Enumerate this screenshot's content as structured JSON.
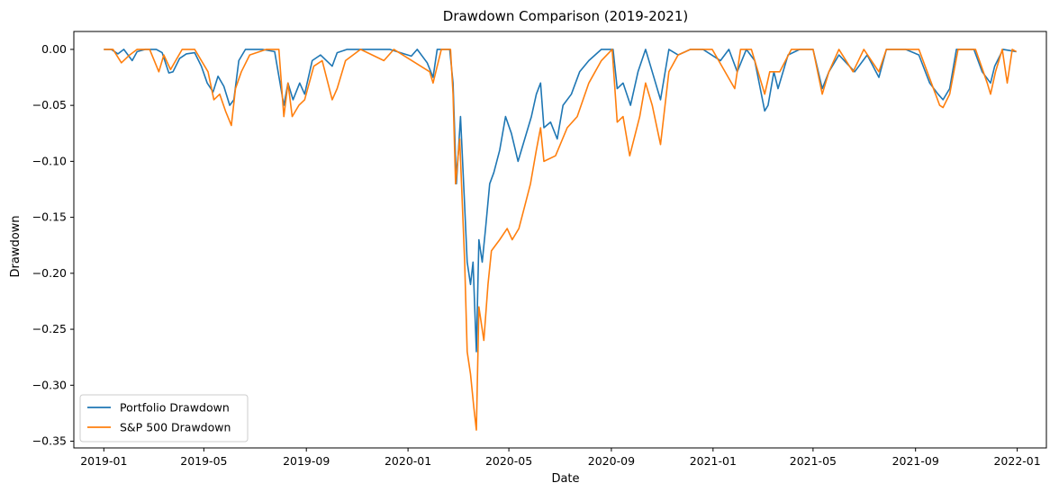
{
  "chart_data": {
    "type": "line",
    "title": "Drawdown Comparison (2019-2021)",
    "xlabel": "Date",
    "ylabel": "Drawdown",
    "xlim": [
      "2018-11-26",
      "2022-02-05"
    ],
    "ylim": [
      -0.356,
      0.016
    ],
    "x_ticks": [
      "2019-01",
      "2019-05",
      "2019-09",
      "2020-01",
      "2020-05",
      "2020-09",
      "2021-01",
      "2021-05",
      "2021-09",
      "2022-01"
    ],
    "y_ticks": [
      0.0,
      -0.05,
      -0.1,
      -0.15,
      -0.2,
      -0.25,
      -0.3,
      -0.35
    ],
    "y_tick_labels": [
      "0.00",
      "−0.05",
      "−0.10",
      "−0.15",
      "−0.20",
      "−0.25",
      "−0.30",
      "−0.35"
    ],
    "grid": false,
    "legend_position": "lower-left",
    "series": [
      {
        "name": "Portfolio Drawdown",
        "color": "#1f77b4",
        "points": [
          [
            "2019-01-01",
            0.0
          ],
          [
            "2019-01-10",
            0.0
          ],
          [
            "2019-01-18",
            -0.004
          ],
          [
            "2019-01-25",
            0.0
          ],
          [
            "2019-02-04",
            -0.01
          ],
          [
            "2019-02-10",
            -0.002
          ],
          [
            "2019-02-20",
            0.0
          ],
          [
            "2019-03-05",
            0.0
          ],
          [
            "2019-03-12",
            -0.003
          ],
          [
            "2019-03-20",
            -0.021
          ],
          [
            "2019-03-25",
            -0.02
          ],
          [
            "2019-04-02",
            -0.008
          ],
          [
            "2019-04-10",
            -0.004
          ],
          [
            "2019-04-20",
            -0.003
          ],
          [
            "2019-04-28",
            -0.015
          ],
          [
            "2019-05-05",
            -0.03
          ],
          [
            "2019-05-12",
            -0.038
          ],
          [
            "2019-05-18",
            -0.024
          ],
          [
            "2019-05-25",
            -0.033
          ],
          [
            "2019-06-01",
            -0.05
          ],
          [
            "2019-06-06",
            -0.045
          ],
          [
            "2019-06-12",
            -0.01
          ],
          [
            "2019-06-20",
            0.0
          ],
          [
            "2019-07-10",
            0.0
          ],
          [
            "2019-07-25",
            -0.002
          ],
          [
            "2019-08-05",
            -0.05
          ],
          [
            "2019-08-10",
            -0.03
          ],
          [
            "2019-08-16",
            -0.045
          ],
          [
            "2019-08-24",
            -0.03
          ],
          [
            "2019-08-30",
            -0.04
          ],
          [
            "2019-09-08",
            -0.01
          ],
          [
            "2019-09-18",
            -0.005
          ],
          [
            "2019-10-02",
            -0.015
          ],
          [
            "2019-10-08",
            -0.003
          ],
          [
            "2019-10-20",
            0.0
          ],
          [
            "2019-11-15",
            0.0
          ],
          [
            "2019-12-10",
            0.0
          ],
          [
            "2020-01-05",
            -0.006
          ],
          [
            "2020-01-12",
            0.0
          ],
          [
            "2020-01-24",
            -0.012
          ],
          [
            "2020-01-31",
            -0.025
          ],
          [
            "2020-02-05",
            0.0
          ],
          [
            "2020-02-20",
            0.0
          ],
          [
            "2020-02-24",
            -0.03
          ],
          [
            "2020-02-28",
            -0.12
          ],
          [
            "2020-03-04",
            -0.06
          ],
          [
            "2020-03-09",
            -0.14
          ],
          [
            "2020-03-12",
            -0.19
          ],
          [
            "2020-03-16",
            -0.21
          ],
          [
            "2020-03-19",
            -0.19
          ],
          [
            "2020-03-23",
            -0.27
          ],
          [
            "2020-03-26",
            -0.17
          ],
          [
            "2020-03-30",
            -0.19
          ],
          [
            "2020-04-03",
            -0.16
          ],
          [
            "2020-04-08",
            -0.12
          ],
          [
            "2020-04-13",
            -0.11
          ],
          [
            "2020-04-20",
            -0.09
          ],
          [
            "2020-04-27",
            -0.06
          ],
          [
            "2020-05-04",
            -0.075
          ],
          [
            "2020-05-12",
            -0.1
          ],
          [
            "2020-05-20",
            -0.08
          ],
          [
            "2020-05-28",
            -0.06
          ],
          [
            "2020-06-03",
            -0.04
          ],
          [
            "2020-06-08",
            -0.03
          ],
          [
            "2020-06-12",
            -0.07
          ],
          [
            "2020-06-20",
            -0.065
          ],
          [
            "2020-06-28",
            -0.08
          ],
          [
            "2020-07-05",
            -0.05
          ],
          [
            "2020-07-15",
            -0.04
          ],
          [
            "2020-07-25",
            -0.02
          ],
          [
            "2020-08-05",
            -0.01
          ],
          [
            "2020-08-20",
            0.0
          ],
          [
            "2020-09-03",
            0.0
          ],
          [
            "2020-09-08",
            -0.035
          ],
          [
            "2020-09-15",
            -0.03
          ],
          [
            "2020-09-24",
            -0.05
          ],
          [
            "2020-10-03",
            -0.02
          ],
          [
            "2020-10-12",
            0.0
          ],
          [
            "2020-10-20",
            -0.02
          ],
          [
            "2020-10-30",
            -0.045
          ],
          [
            "2020-11-09",
            0.0
          ],
          [
            "2020-11-20",
            -0.005
          ],
          [
            "2020-12-05",
            0.0
          ],
          [
            "2020-12-20",
            0.0
          ],
          [
            "2021-01-10",
            -0.01
          ],
          [
            "2021-01-20",
            0.0
          ],
          [
            "2021-01-30",
            -0.02
          ],
          [
            "2021-02-10",
            0.0
          ],
          [
            "2021-02-20",
            -0.01
          ],
          [
            "2021-03-04",
            -0.055
          ],
          [
            "2021-03-08",
            -0.05
          ],
          [
            "2021-03-15",
            -0.02
          ],
          [
            "2021-03-20",
            -0.035
          ],
          [
            "2021-04-01",
            -0.005
          ],
          [
            "2021-04-15",
            0.0
          ],
          [
            "2021-05-01",
            0.0
          ],
          [
            "2021-05-12",
            -0.035
          ],
          [
            "2021-05-20",
            -0.02
          ],
          [
            "2021-06-01",
            -0.005
          ],
          [
            "2021-06-20",
            -0.02
          ],
          [
            "2021-07-05",
            -0.005
          ],
          [
            "2021-07-19",
            -0.025
          ],
          [
            "2021-07-28",
            0.0
          ],
          [
            "2021-08-20",
            0.0
          ],
          [
            "2021-09-05",
            -0.005
          ],
          [
            "2021-09-18",
            -0.03
          ],
          [
            "2021-09-28",
            -0.04
          ],
          [
            "2021-10-04",
            -0.045
          ],
          [
            "2021-10-12",
            -0.035
          ],
          [
            "2021-10-20",
            0.0
          ],
          [
            "2021-11-10",
            0.0
          ],
          [
            "2021-11-20",
            -0.02
          ],
          [
            "2021-11-30",
            -0.03
          ],
          [
            "2021-12-05",
            -0.015
          ],
          [
            "2021-12-15",
            0.0
          ],
          [
            "2021-12-31",
            -0.002
          ]
        ]
      },
      {
        "name": "S&P 500 Drawdown",
        "color": "#ff7f0e",
        "points": [
          [
            "2019-01-01",
            0.0
          ],
          [
            "2019-01-12",
            0.0
          ],
          [
            "2019-01-22",
            -0.012
          ],
          [
            "2019-02-01",
            -0.005
          ],
          [
            "2019-02-10",
            0.0
          ],
          [
            "2019-02-25",
            0.0
          ],
          [
            "2019-03-08",
            -0.02
          ],
          [
            "2019-03-14",
            -0.005
          ],
          [
            "2019-03-22",
            -0.018
          ],
          [
            "2019-04-05",
            0.0
          ],
          [
            "2019-04-20",
            0.0
          ],
          [
            "2019-05-06",
            -0.02
          ],
          [
            "2019-05-13",
            -0.045
          ],
          [
            "2019-05-20",
            -0.04
          ],
          [
            "2019-05-27",
            -0.055
          ],
          [
            "2019-06-03",
            -0.068
          ],
          [
            "2019-06-08",
            -0.035
          ],
          [
            "2019-06-15",
            -0.02
          ],
          [
            "2019-06-25",
            -0.005
          ],
          [
            "2019-07-15",
            0.0
          ],
          [
            "2019-07-30",
            0.0
          ],
          [
            "2019-08-05",
            -0.06
          ],
          [
            "2019-08-10",
            -0.03
          ],
          [
            "2019-08-15",
            -0.06
          ],
          [
            "2019-08-23",
            -0.05
          ],
          [
            "2019-08-30",
            -0.045
          ],
          [
            "2019-09-10",
            -0.015
          ],
          [
            "2019-09-20",
            -0.01
          ],
          [
            "2019-10-02",
            -0.045
          ],
          [
            "2019-10-08",
            -0.035
          ],
          [
            "2019-10-18",
            -0.01
          ],
          [
            "2019-11-05",
            0.0
          ],
          [
            "2019-12-03",
            -0.01
          ],
          [
            "2019-12-15",
            0.0
          ],
          [
            "2020-01-27",
            -0.02
          ],
          [
            "2020-01-31",
            -0.03
          ],
          [
            "2020-02-10",
            0.0
          ],
          [
            "2020-02-21",
            0.0
          ],
          [
            "2020-02-24",
            -0.04
          ],
          [
            "2020-02-27",
            -0.12
          ],
          [
            "2020-03-03",
            -0.08
          ],
          [
            "2020-03-09",
            -0.19
          ],
          [
            "2020-03-12",
            -0.27
          ],
          [
            "2020-03-16",
            -0.29
          ],
          [
            "2020-03-20",
            -0.32
          ],
          [
            "2020-03-23",
            -0.34
          ],
          [
            "2020-03-26",
            -0.23
          ],
          [
            "2020-04-01",
            -0.26
          ],
          [
            "2020-04-06",
            -0.21
          ],
          [
            "2020-04-10",
            -0.18
          ],
          [
            "2020-04-20",
            -0.17
          ],
          [
            "2020-04-29",
            -0.16
          ],
          [
            "2020-05-05",
            -0.17
          ],
          [
            "2020-05-13",
            -0.16
          ],
          [
            "2020-05-20",
            -0.14
          ],
          [
            "2020-05-27",
            -0.12
          ],
          [
            "2020-06-03",
            -0.09
          ],
          [
            "2020-06-08",
            -0.07
          ],
          [
            "2020-06-12",
            -0.1
          ],
          [
            "2020-06-26",
            -0.095
          ],
          [
            "2020-07-10",
            -0.07
          ],
          [
            "2020-07-22",
            -0.06
          ],
          [
            "2020-08-05",
            -0.03
          ],
          [
            "2020-08-20",
            -0.01
          ],
          [
            "2020-09-02",
            0.0
          ],
          [
            "2020-09-08",
            -0.065
          ],
          [
            "2020-09-15",
            -0.06
          ],
          [
            "2020-09-23",
            -0.095
          ],
          [
            "2020-10-05",
            -0.06
          ],
          [
            "2020-10-12",
            -0.03
          ],
          [
            "2020-10-20",
            -0.05
          ],
          [
            "2020-10-30",
            -0.085
          ],
          [
            "2020-11-09",
            -0.02
          ],
          [
            "2020-11-20",
            -0.005
          ],
          [
            "2020-12-05",
            0.0
          ],
          [
            "2020-12-31",
            0.0
          ],
          [
            "2021-01-27",
            -0.035
          ],
          [
            "2021-02-03",
            0.0
          ],
          [
            "2021-02-16",
            0.0
          ],
          [
            "2021-03-04",
            -0.04
          ],
          [
            "2021-03-10",
            -0.02
          ],
          [
            "2021-03-22",
            -0.02
          ],
          [
            "2021-04-05",
            0.0
          ],
          [
            "2021-05-01",
            0.0
          ],
          [
            "2021-05-12",
            -0.04
          ],
          [
            "2021-05-20",
            -0.02
          ],
          [
            "2021-06-01",
            0.0
          ],
          [
            "2021-06-18",
            -0.02
          ],
          [
            "2021-07-01",
            0.0
          ],
          [
            "2021-07-19",
            -0.02
          ],
          [
            "2021-07-28",
            0.0
          ],
          [
            "2021-08-20",
            0.0
          ],
          [
            "2021-09-05",
            0.0
          ],
          [
            "2021-09-20",
            -0.03
          ],
          [
            "2021-09-30",
            -0.05
          ],
          [
            "2021-10-04",
            -0.052
          ],
          [
            "2021-10-12",
            -0.04
          ],
          [
            "2021-10-22",
            0.0
          ],
          [
            "2021-11-12",
            0.0
          ],
          [
            "2021-11-26",
            -0.03
          ],
          [
            "2021-11-30",
            -0.04
          ],
          [
            "2021-12-06",
            -0.02
          ],
          [
            "2021-12-14",
            0.0
          ],
          [
            "2021-12-20",
            -0.03
          ],
          [
            "2021-12-26",
            0.0
          ],
          [
            "2021-12-31",
            -0.002
          ]
        ]
      }
    ]
  }
}
